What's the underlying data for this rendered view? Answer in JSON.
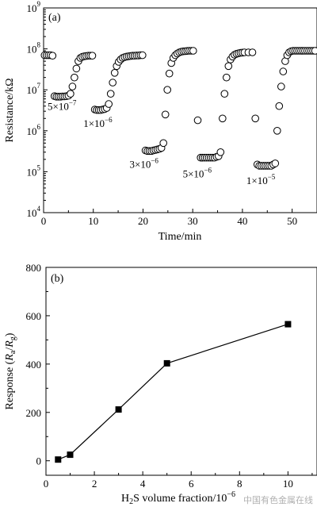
{
  "chart_data": [
    {
      "type": "scatter",
      "panel_label": "(a)",
      "xlabel": "Time/min",
      "ylabel": "Resistance/kΩ",
      "xlim": [
        0,
        55
      ],
      "ylim_log10": [
        4,
        9
      ],
      "yscale": "log",
      "x_ticks": [
        "0",
        "10",
        "20",
        "30",
        "40",
        "50"
      ],
      "y_ticks": [
        {
          "base": "10",
          "exp": "4"
        },
        {
          "base": "10",
          "exp": "5"
        },
        {
          "base": "10",
          "exp": "6"
        },
        {
          "base": "10",
          "exp": "7"
        },
        {
          "base": "10",
          "exp": "8"
        },
        {
          "base": "10",
          "exp": "9"
        }
      ],
      "series": [
        {
          "marker": "open-circle",
          "points": [
            [
              0.2,
              70000000.0
            ],
            [
              0.6,
              70000000.0
            ],
            [
              1.0,
              70000000.0
            ],
            [
              1.4,
              70000000.0
            ],
            [
              1.8,
              68000000.0
            ],
            [
              2.2,
              7000000.0
            ],
            [
              2.6,
              6800000.0
            ],
            [
              3.0,
              6800000.0
            ],
            [
              3.4,
              6800000.0
            ],
            [
              3.8,
              6900000.0
            ],
            [
              4.2,
              6900000.0
            ],
            [
              4.6,
              7000000.0
            ],
            [
              5.0,
              7200000.0
            ],
            [
              5.4,
              8000000.0
            ],
            [
              5.8,
              12000000.0
            ],
            [
              6.2,
              20000000.0
            ],
            [
              6.6,
              33000000.0
            ],
            [
              7.0,
              50000000.0
            ],
            [
              7.4,
              60000000.0
            ],
            [
              7.8,
              64000000.0
            ],
            [
              8.2,
              66000000.0
            ],
            [
              8.6,
              67000000.0
            ],
            [
              9.0,
              68000000.0
            ],
            [
              9.4,
              68000000.0
            ],
            [
              9.8,
              68000000.0
            ],
            [
              10.3,
              3300000.0
            ],
            [
              10.7,
              3200000.0
            ],
            [
              11.1,
              3200000.0
            ],
            [
              11.5,
              3200000.0
            ],
            [
              11.9,
              3300000.0
            ],
            [
              12.3,
              3400000.0
            ],
            [
              12.7,
              3600000.0
            ],
            [
              13.1,
              4500000.0
            ],
            [
              13.5,
              8000000.0
            ],
            [
              13.9,
              15000000.0
            ],
            [
              14.3,
              26000000.0
            ],
            [
              14.7,
              38000000.0
            ],
            [
              15.1,
              48000000.0
            ],
            [
              15.5,
              55000000.0
            ],
            [
              15.9,
              60000000.0
            ],
            [
              16.3,
              63000000.0
            ],
            [
              16.7,
              65000000.0
            ],
            [
              17.1,
              66000000.0
            ],
            [
              17.5,
              67000000.0
            ],
            [
              17.9,
              68000000.0
            ],
            [
              18.3,
              68000000.0
            ],
            [
              18.7,
              69000000.0
            ],
            [
              19.1,
              69000000.0
            ],
            [
              19.5,
              70000000.0
            ],
            [
              19.9,
              70000000.0
            ],
            [
              20.5,
              330000.0
            ],
            [
              20.9,
              320000.0
            ],
            [
              21.3,
              320000.0
            ],
            [
              21.7,
              320000.0
            ],
            [
              22.1,
              330000.0
            ],
            [
              22.5,
              340000.0
            ],
            [
              22.9,
              350000.0
            ],
            [
              23.3,
              360000.0
            ],
            [
              23.7,
              380000.0
            ],
            [
              24.1,
              500000.0
            ],
            [
              24.5,
              2500000.0
            ],
            [
              24.9,
              10000000.0
            ],
            [
              25.3,
              25000000.0
            ],
            [
              25.7,
              45000000.0
            ],
            [
              26.1,
              60000000.0
            ],
            [
              26.5,
              70000000.0
            ],
            [
              26.9,
              77000000.0
            ],
            [
              27.3,
              82000000.0
            ],
            [
              27.7,
              85000000.0
            ],
            [
              28.1,
              87000000.0
            ],
            [
              28.5,
              88000000.0
            ],
            [
              28.9,
              89000000.0
            ],
            [
              29.3,
              90000000.0
            ],
            [
              29.7,
              90000000.0
            ],
            [
              30.1,
              90000000.0
            ],
            [
              31.0,
              1800000.0
            ],
            [
              31.6,
              220000.0
            ],
            [
              32.0,
              220000.0
            ],
            [
              32.4,
              220000.0
            ],
            [
              32.8,
              220000.0
            ],
            [
              33.2,
              220000.0
            ],
            [
              33.6,
              220000.0
            ],
            [
              34.0,
              220000.0
            ],
            [
              34.4,
              220000.0
            ],
            [
              34.8,
              230000.0
            ],
            [
              35.2,
              240000.0
            ],
            [
              35.6,
              300000.0
            ],
            [
              36.0,
              2000000.0
            ],
            [
              36.4,
              8000000.0
            ],
            [
              36.8,
              20000000.0
            ],
            [
              37.2,
              38000000.0
            ],
            [
              37.6,
              55000000.0
            ],
            [
              38.0,
              65000000.0
            ],
            [
              38.4,
              72000000.0
            ],
            [
              38.8,
              76000000.0
            ],
            [
              39.2,
              78000000.0
            ],
            [
              39.6,
              80000000.0
            ],
            [
              40.0,
              81000000.0
            ],
            [
              40.4,
              82000000.0
            ],
            [
              41.2,
              82000000.0
            ],
            [
              42.0,
              82000000.0
            ],
            [
              42.6,
              2000000.0
            ],
            [
              43.0,
              150000.0
            ],
            [
              43.4,
              140000.0
            ],
            [
              43.8,
              140000.0
            ],
            [
              44.2,
              140000.0
            ],
            [
              44.6,
              140000.0
            ],
            [
              45.0,
              140000.0
            ],
            [
              45.4,
              140000.0
            ],
            [
              45.8,
              140000.0
            ],
            [
              46.2,
              150000.0
            ],
            [
              46.6,
              160000.0
            ],
            [
              47.0,
              1000000.0
            ],
            [
              47.4,
              4000000.0
            ],
            [
              47.8,
              12000000.0
            ],
            [
              48.2,
              28000000.0
            ],
            [
              48.6,
              50000000.0
            ],
            [
              49.0,
              70000000.0
            ],
            [
              49.4,
              82000000.0
            ],
            [
              49.8,
              88000000.0
            ],
            [
              50.2,
              90000000.0
            ],
            [
              50.6,
              90000000.0
            ],
            [
              51.0,
              90000000.0
            ],
            [
              51.4,
              90000000.0
            ],
            [
              51.8,
              90000000.0
            ],
            [
              52.2,
              90000000.0
            ],
            [
              52.6,
              90000000.0
            ],
            [
              53.0,
              90000000.0
            ],
            [
              53.4,
              90000000.0
            ],
            [
              53.8,
              90000000.0
            ],
            [
              54.2,
              90000000.0
            ],
            [
              54.6,
              90000000.0
            ]
          ]
        }
      ],
      "annotations": [
        {
          "base": "5×10",
          "exp": "−7",
          "x": 0.8,
          "y": 3200000.0
        },
        {
          "base": "1×10",
          "exp": "−6",
          "x": 8.0,
          "y": 1250000.0
        },
        {
          "base": "3×10",
          "exp": "−6",
          "x": 17.3,
          "y": 125000.0
        },
        {
          "base": "5×10",
          "exp": "−6",
          "x": 28.0,
          "y": 73000.0
        },
        {
          "base": "1×10",
          "exp": "−5",
          "x": 40.8,
          "y": 50000.0
        }
      ]
    },
    {
      "type": "line",
      "panel_label": "(b)",
      "xlabel": {
        "pre": "H",
        "sub": "2",
        "mid": "S volume fraction/10",
        "sup": "−6"
      },
      "ylabel": {
        "pre": "Response (",
        "r1": "R",
        "s1": "a",
        "slash": "/",
        "r2": "R",
        "s2": "g",
        "post": ")"
      },
      "xlim": [
        0,
        11.2
      ],
      "ylim": [
        -60,
        800
      ],
      "x_ticks": [
        "0",
        "2",
        "4",
        "6",
        "8",
        "10"
      ],
      "y_ticks": [
        "0",
        "200",
        "400",
        "600",
        "800"
      ],
      "marker": "filled-square",
      "x": [
        0.5,
        1,
        3,
        5,
        10
      ],
      "y": [
        5,
        25,
        212,
        403,
        565
      ]
    }
  ],
  "watermark": "中国有色金属在线"
}
